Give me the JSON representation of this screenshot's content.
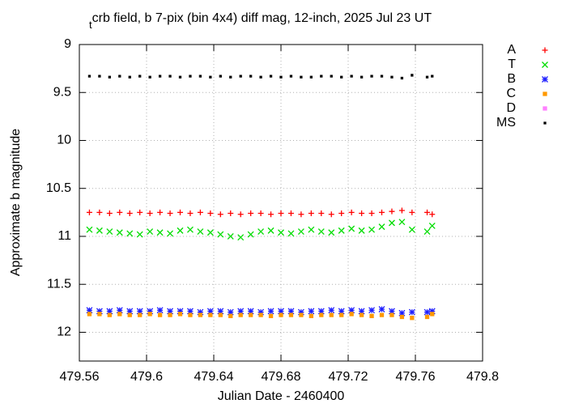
{
  "chart_data": {
    "type": "scatter",
    "title_prefix": "t",
    "title": "crb field, b 7-pix (bin 4x4) diff mag, 12-inch, 2025 Jul 23 UT",
    "x_label": "Julian Date - 2460400",
    "y_label": "Approximate b magnitude",
    "xlim": [
      479.56,
      479.8
    ],
    "xticks": [
      479.56,
      479.6,
      479.64,
      479.68,
      479.72,
      479.76,
      479.8
    ],
    "ylim": [
      12.3,
      9
    ],
    "yticks": [
      9,
      9.5,
      10,
      10.5,
      11,
      11.5,
      12
    ],
    "grid": true,
    "legend": "outside-right",
    "x": [
      479.566,
      479.572,
      479.578,
      479.584,
      479.59,
      479.596,
      479.602,
      479.608,
      479.614,
      479.62,
      479.626,
      479.632,
      479.638,
      479.644,
      479.65,
      479.656,
      479.662,
      479.668,
      479.674,
      479.68,
      479.686,
      479.692,
      479.698,
      479.704,
      479.71,
      479.716,
      479.722,
      479.728,
      479.734,
      479.74,
      479.746,
      479.752,
      479.758,
      479.767,
      479.77
    ],
    "series": [
      {
        "name": "A",
        "color": "#ff0000",
        "marker": "plus",
        "values": [
          10.75,
          10.75,
          10.76,
          10.75,
          10.76,
          10.75,
          10.76,
          10.75,
          10.76,
          10.75,
          10.76,
          10.75,
          10.76,
          10.77,
          10.76,
          10.77,
          10.76,
          10.76,
          10.77,
          10.76,
          10.76,
          10.77,
          10.76,
          10.76,
          10.77,
          10.76,
          10.75,
          10.76,
          10.76,
          10.75,
          10.74,
          10.73,
          10.75,
          10.75,
          10.77
        ]
      },
      {
        "name": "T",
        "color": "#00dd00",
        "marker": "cross",
        "values": [
          10.93,
          10.94,
          10.95,
          10.96,
          10.97,
          10.98,
          10.95,
          10.96,
          10.97,
          10.94,
          10.93,
          10.95,
          10.96,
          10.98,
          11.0,
          11.01,
          10.98,
          10.95,
          10.94,
          10.96,
          10.97,
          10.95,
          10.93,
          10.95,
          10.96,
          10.94,
          10.92,
          10.94,
          10.93,
          10.9,
          10.86,
          10.85,
          10.93,
          10.95,
          10.89
        ]
      },
      {
        "name": "B",
        "color": "#2020ff",
        "marker": "star",
        "values": [
          11.77,
          11.78,
          11.78,
          11.77,
          11.78,
          11.78,
          11.78,
          11.77,
          11.78,
          11.78,
          11.78,
          11.79,
          11.78,
          11.78,
          11.79,
          11.78,
          11.78,
          11.79,
          11.78,
          11.78,
          11.78,
          11.79,
          11.78,
          11.78,
          11.77,
          11.78,
          11.77,
          11.78,
          11.77,
          11.76,
          11.78,
          11.8,
          11.79,
          11.79,
          11.78
        ]
      },
      {
        "name": "C",
        "color": "#ff9900",
        "marker": "square",
        "values": [
          11.81,
          11.81,
          11.82,
          11.81,
          11.82,
          11.82,
          11.81,
          11.82,
          11.82,
          11.81,
          11.82,
          11.82,
          11.82,
          11.82,
          11.83,
          11.82,
          11.82,
          11.82,
          11.83,
          11.82,
          11.82,
          11.82,
          11.83,
          11.82,
          11.82,
          11.82,
          11.81,
          11.82,
          11.83,
          11.82,
          11.82,
          11.84,
          11.85,
          11.84,
          11.81
        ]
      },
      {
        "name": "D",
        "color": "#ff80ff",
        "marker": "square",
        "values": [
          null,
          null,
          null,
          null,
          null,
          null,
          null,
          null,
          null,
          null,
          null,
          null,
          null,
          null,
          null,
          null,
          null,
          null,
          null,
          null,
          null,
          null,
          null,
          null,
          null,
          null,
          null,
          null,
          null,
          null,
          null,
          null,
          null,
          null,
          null
        ]
      },
      {
        "name": "MS",
        "color": "#000000",
        "marker": "dot",
        "values": [
          9.33,
          9.33,
          9.34,
          9.33,
          9.34,
          9.33,
          9.34,
          9.33,
          9.33,
          9.34,
          9.33,
          9.33,
          9.34,
          9.33,
          9.34,
          9.33,
          9.33,
          9.34,
          9.33,
          9.34,
          9.33,
          9.34,
          9.34,
          9.33,
          9.33,
          9.34,
          9.33,
          9.34,
          9.33,
          9.33,
          9.34,
          9.35,
          9.32,
          9.34,
          9.33
        ]
      }
    ]
  }
}
